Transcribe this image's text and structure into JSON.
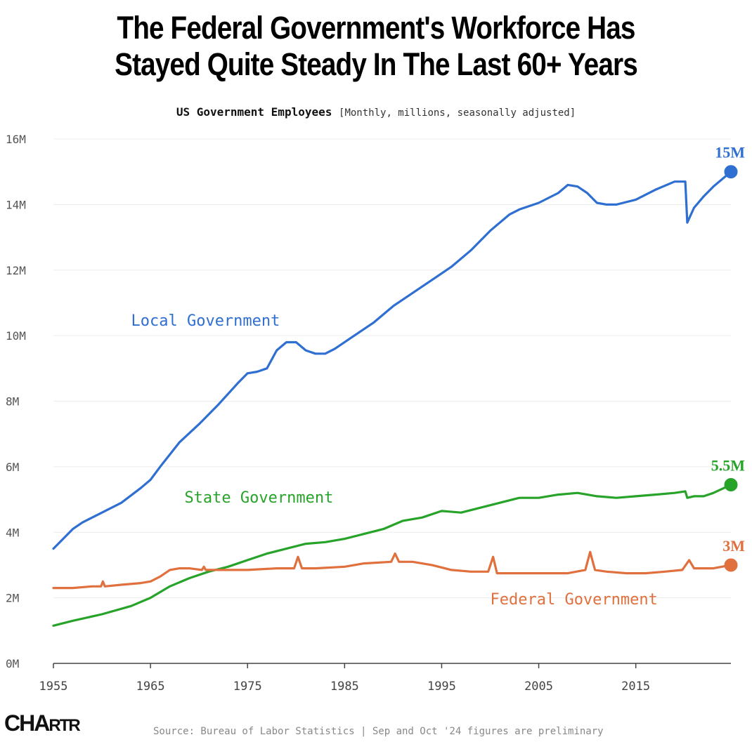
{
  "header": {
    "title_line1": "The Federal Government's Workforce Has",
    "title_line2": "Stayed Quite Steady In The Last 60+ Years",
    "subtitle": "US Government Employees",
    "subtitle_units": "[Monthly, millions, seasonally adjusted]"
  },
  "footer": {
    "logo_big": "CHA",
    "logo_small": "RTR",
    "source": "Source: Bureau of Labor Statistics | Sep and Oct '24 figures are preliminary"
  },
  "chart_data": {
    "type": "line",
    "title": "US Government Employees",
    "xlabel": "",
    "ylabel": "",
    "xlim": [
      1955,
      2024.8
    ],
    "ylim": [
      0,
      16
    ],
    "x_ticks": [
      1955,
      1965,
      1975,
      1985,
      1995,
      2005,
      2015
    ],
    "x_tick_labels": [
      "1955",
      "1965",
      "1975",
      "1985",
      "1995",
      "2005",
      "2015"
    ],
    "y_ticks": [
      0,
      2,
      4,
      6,
      8,
      10,
      12,
      14,
      16
    ],
    "y_tick_labels": [
      "0M",
      "2M",
      "4M",
      "6M",
      "8M",
      "10M",
      "12M",
      "14M",
      "16M"
    ],
    "grid": true,
    "series": [
      {
        "name": "Local Government",
        "color": "#2f6fd1",
        "end_label": "15M",
        "x": [
          1955,
          1956,
          1957,
          1958,
          1960,
          1962,
          1964,
          1965,
          1966,
          1968,
          1970,
          1972,
          1974,
          1975,
          1976,
          1977,
          1978,
          1979,
          1980,
          1981,
          1982,
          1983,
          1984,
          1986,
          1988,
          1990,
          1992,
          1994,
          1996,
          1998,
          2000,
          2002,
          2003,
          2005,
          2007,
          2008,
          2009,
          2010,
          2011,
          2012,
          2013,
          2015,
          2017,
          2019,
          2020.1,
          2020.3,
          2021,
          2022,
          2023,
          2024.8
        ],
        "values": [
          3.5,
          3.8,
          4.1,
          4.3,
          4.6,
          4.9,
          5.35,
          5.6,
          6.0,
          6.75,
          7.3,
          7.9,
          8.55,
          8.85,
          8.9,
          9.0,
          9.55,
          9.8,
          9.8,
          9.55,
          9.45,
          9.45,
          9.6,
          10.0,
          10.4,
          10.9,
          11.3,
          11.7,
          12.1,
          12.6,
          13.2,
          13.7,
          13.85,
          14.05,
          14.35,
          14.6,
          14.55,
          14.35,
          14.05,
          14.0,
          14.0,
          14.15,
          14.45,
          14.7,
          14.7,
          13.45,
          13.9,
          14.25,
          14.55,
          15.0
        ]
      },
      {
        "name": "State Government",
        "color": "#27a32a",
        "end_label": "5.5M",
        "x": [
          1955,
          1957,
          1960,
          1963,
          1965,
          1967,
          1969,
          1971,
          1973,
          1975,
          1977,
          1979,
          1981,
          1983,
          1985,
          1987,
          1989,
          1991,
          1993,
          1995,
          1997,
          1999,
          2001,
          2003,
          2005,
          2007,
          2009,
          2011,
          2013,
          2015,
          2017,
          2019,
          2020.1,
          2020.3,
          2021,
          2022,
          2023,
          2024.8
        ],
        "values": [
          1.15,
          1.3,
          1.5,
          1.75,
          2.0,
          2.35,
          2.6,
          2.8,
          2.95,
          3.15,
          3.35,
          3.5,
          3.65,
          3.7,
          3.8,
          3.95,
          4.1,
          4.35,
          4.45,
          4.65,
          4.6,
          4.75,
          4.9,
          5.05,
          5.05,
          5.15,
          5.2,
          5.1,
          5.05,
          5.1,
          5.15,
          5.2,
          5.25,
          5.05,
          5.1,
          5.1,
          5.2,
          5.45
        ]
      },
      {
        "name": "Federal Government",
        "color": "#e0703d",
        "end_label": "3M",
        "x": [
          1955,
          1957,
          1959,
          1959.9,
          1960.1,
          1960.3,
          1962,
          1964,
          1965,
          1966,
          1967,
          1968,
          1969,
          1970.3,
          1970.5,
          1970.7,
          1972,
          1975,
          1978,
          1979.8,
          1980.2,
          1980.6,
          1982,
          1985,
          1987,
          1989.8,
          1990.2,
          1990.6,
          1992,
          1994,
          1996,
          1998,
          1999.8,
          2000.3,
          2000.7,
          2003,
          2006,
          2008,
          2009.8,
          2010.3,
          2010.8,
          2012,
          2014,
          2016,
          2018,
          2019.8,
          2020.5,
          2021,
          2023,
          2024.8
        ],
        "values": [
          2.3,
          2.3,
          2.35,
          2.35,
          2.5,
          2.35,
          2.4,
          2.45,
          2.5,
          2.65,
          2.85,
          2.9,
          2.9,
          2.85,
          2.95,
          2.85,
          2.85,
          2.85,
          2.9,
          2.9,
          3.25,
          2.9,
          2.9,
          2.95,
          3.05,
          3.1,
          3.35,
          3.1,
          3.1,
          3.0,
          2.85,
          2.8,
          2.8,
          3.25,
          2.75,
          2.75,
          2.75,
          2.75,
          2.85,
          3.4,
          2.85,
          2.8,
          2.75,
          2.75,
          2.8,
          2.85,
          3.15,
          2.9,
          2.9,
          3.0
        ]
      }
    ],
    "annotations": [
      "Local Government",
      "State Government",
      "Federal Government"
    ]
  }
}
